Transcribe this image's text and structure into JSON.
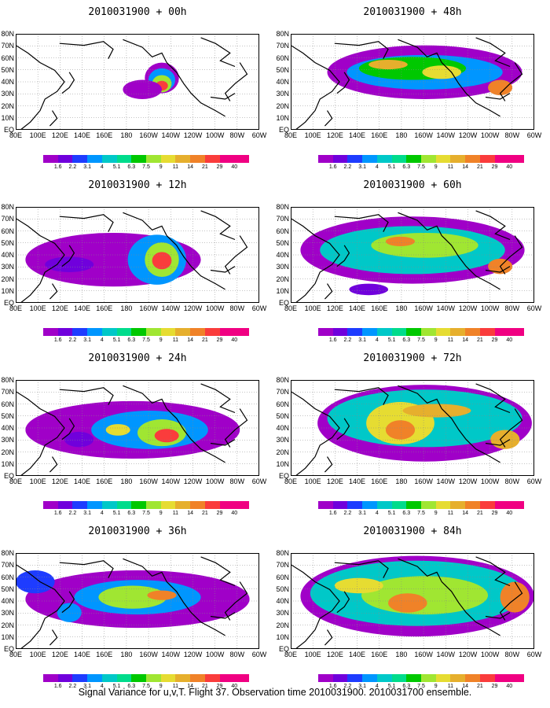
{
  "panels": [
    {
      "title": "2010031900 + 00h"
    },
    {
      "title": "2010031900 + 48h"
    },
    {
      "title": "2010031900 + 12h"
    },
    {
      "title": "2010031900 + 60h"
    },
    {
      "title": "2010031900 + 24h"
    },
    {
      "title": "2010031900 + 72h"
    },
    {
      "title": "2010031900 + 36h"
    },
    {
      "title": "2010031900 + 84h"
    }
  ],
  "lat_labels": [
    "80N",
    "70N",
    "60N",
    "50N",
    "40N",
    "30N",
    "20N",
    "10N",
    "EQ"
  ],
  "lon_labels": [
    "80E",
    "100E",
    "120E",
    "140E",
    "160E",
    "180",
    "160W",
    "140W",
    "120W",
    "100W",
    "80W",
    "60W"
  ],
  "colorbar": {
    "labels": [
      "1.6",
      "2.2",
      "3.1",
      "4",
      "5.1",
      "6.3",
      "7.5",
      "9",
      "11",
      "14",
      "21",
      "29",
      "40"
    ],
    "colors": [
      "#a000c8",
      "#7000dc",
      "#1e3cff",
      "#0096ff",
      "#00c8c8",
      "#00dc8c",
      "#00c800",
      "#a0e632",
      "#e6dc32",
      "#e6af2d",
      "#f08228",
      "#fa3c3c",
      "#f00082"
    ]
  },
  "footer": "Signal Variance for u,v,T. Flight 37. Observation time 2010031900. 2010031700 ensemble."
}
